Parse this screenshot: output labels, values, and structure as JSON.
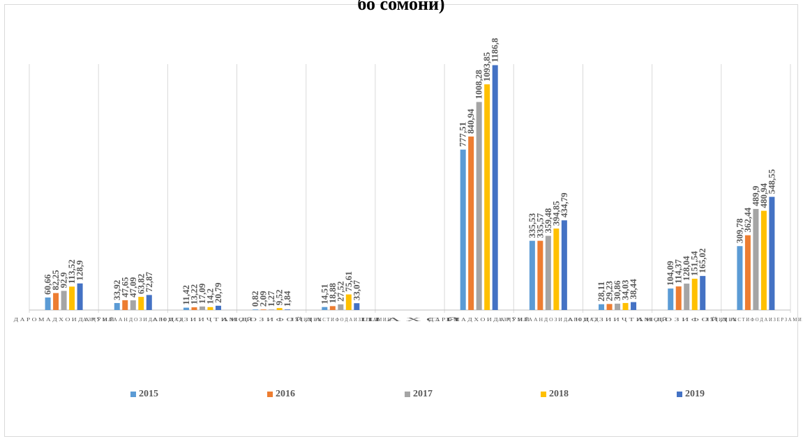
{
  "chart_data": {
    "type": "bar",
    "title": "бо сомонӣ)",
    "categories": [
      "Д А Р О М А Д Х О И  Д А Р Ӯ Н Ӣ",
      "А З Ҷ У М Л А  А Н Д О З И  Д А Р О М А Д",
      "А Н Д О З И  И Ҷ Т И М О Ӣ",
      "А Н Д О З И  Ф О Й Д А",
      "Л Ӯ Ҷ И М И  И С Т И Ф О Д А И  З Е Р З А М И Н",
      "Ш А Х С Ӣ",
      "Д А Р О М А Д Х О И  Д А Р Ӯ Н Ӣ",
      "А З Ҷ У М Л А  А Н Д О З И  Д А Р О М А Д",
      "А Н Д О З И  И Ҷ Т И М О Ӣ",
      "А Н Д О З И  Ф О Й Д А",
      "Л Ӯ Ҷ И М И  И С Т И Ф О Д А И  З Е Р З А М И Н"
    ],
    "series": [
      {
        "name": "2015",
        "color": "#5b9bd5",
        "values": [
          60.66,
          33.92,
          11.42,
          0.82,
          14.51,
          null,
          777.51,
          335.53,
          28.11,
          104.09,
          309.78
        ],
        "labels": [
          "60,66",
          "33,92",
          "11,42",
          "0,82",
          "14,51",
          "",
          "777,51",
          "335,53",
          "28,11",
          "104,09",
          "309,78"
        ]
      },
      {
        "name": "2016",
        "color": "#ed7d31",
        "values": [
          82.25,
          47.65,
          13.22,
          2.09,
          18.88,
          null,
          840.94,
          335.57,
          29.23,
          114.37,
          362.44
        ],
        "labels": [
          "82,25",
          "47,65",
          "13,22",
          "2,09",
          "18,88",
          "",
          "840,94",
          "335,57",
          "29,23",
          "114,37",
          "362,44"
        ]
      },
      {
        "name": "2017",
        "color": "#a5a5a5",
        "values": [
          92.9,
          47.09,
          17.09,
          1.27,
          27.52,
          null,
          1008.28,
          359.48,
          30.86,
          128.04,
          489.9
        ],
        "labels": [
          "92,9",
          "47,09",
          "17,09",
          "1,27",
          "27,52",
          "",
          "1008,28",
          "359,48",
          "30,86",
          "128,04",
          "489,9"
        ]
      },
      {
        "name": "2018",
        "color": "#ffc000",
        "values": [
          113.52,
          63.82,
          14.2,
          9.52,
          75.61,
          null,
          1093.85,
          394.85,
          34.03,
          151.54,
          480.94
        ],
        "labels": [
          "113,52",
          "63,82",
          "14,2",
          "9,52",
          "75,61",
          "",
          "1093,85",
          "394,85",
          "34,03",
          "151,54",
          "480,94"
        ]
      },
      {
        "name": "2019",
        "color": "#4472c4",
        "values": [
          128.9,
          72.87,
          20.79,
          1.84,
          33.07,
          null,
          1186.8,
          434.79,
          38.44,
          165.02,
          548.55
        ],
        "labels": [
          "128,9",
          "72,87",
          "20,79",
          "1,84",
          "33,07",
          "",
          "1186,8",
          "434,79",
          "38,44",
          "165,02",
          "548,55"
        ]
      }
    ],
    "ylim": [
      0,
      1300
    ],
    "xlabel": "",
    "ylabel": "",
    "grid": "vertical category separators",
    "legend": "bottom"
  }
}
